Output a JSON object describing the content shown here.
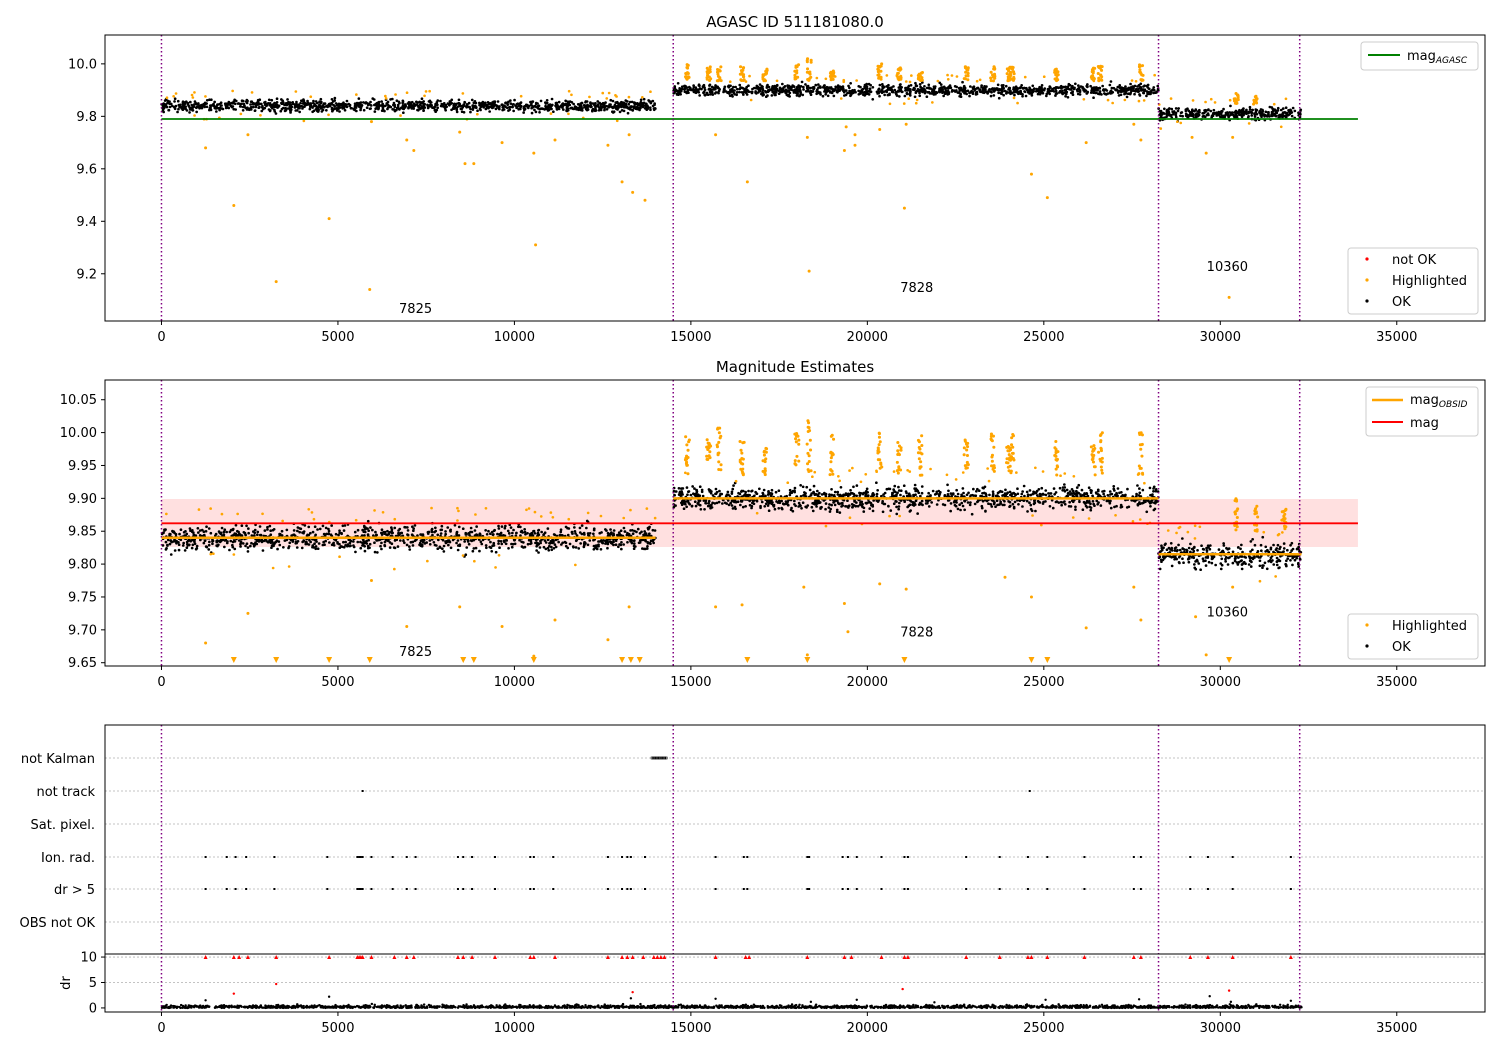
{
  "figure": {
    "background": "#ffffff"
  },
  "colors": {
    "ok": "#000000",
    "highlighted": "#ffa500",
    "not_ok": "#ff0000",
    "agasc": "#008000",
    "mag": "#ff0000",
    "obsid": "#ffa500",
    "band": "#ffcccc",
    "obs_boundary": "#800080",
    "grid": "#b0b0b0"
  },
  "chart_data": [
    {
      "id": "mag_agasc",
      "type": "scatter",
      "title": "AGASC ID 511181080.0",
      "xlim": [
        -1600,
        37500
      ],
      "ylim": [
        9.02,
        10.11
      ],
      "xticks": [
        0,
        5000,
        10000,
        15000,
        20000,
        25000,
        30000,
        35000
      ],
      "xtick_labels": [
        "0",
        "5000",
        "10000",
        "15000",
        "20000",
        "25000",
        "30000",
        "35000"
      ],
      "yticks": [
        9.2,
        9.4,
        9.6,
        9.8,
        10.0
      ],
      "ytick_labels": [
        "9.2",
        "9.4",
        "9.6",
        "9.8",
        "10.0"
      ],
      "obs_boundaries": [
        0,
        14500,
        28250,
        32250
      ],
      "observations": [
        {
          "obsid": "7825",
          "x_range": [
            0,
            14000
          ],
          "ok_mean": 9.84,
          "ok_spread": 0.02,
          "label_at": [
            7200,
            9.05
          ]
        },
        {
          "obsid": "7828",
          "x_range": [
            14500,
            28250
          ],
          "ok_mean": 9.9,
          "ok_spread": 0.02,
          "label_at": [
            21400,
            9.13
          ]
        },
        {
          "obsid": "10360",
          "x_range": [
            28250,
            32300
          ],
          "ok_mean": 9.81,
          "ok_spread": 0.02,
          "label_at": [
            30200,
            9.21
          ]
        }
      ],
      "highlighted_outliers": [
        [
          1250,
          9.68
        ],
        [
          2050,
          9.46
        ],
        [
          2450,
          9.73
        ],
        [
          3250,
          9.17
        ],
        [
          4750,
          9.41
        ],
        [
          5900,
          9.14
        ],
        [
          5950,
          9.78
        ],
        [
          6950,
          9.71
        ],
        [
          7150,
          9.67
        ],
        [
          8450,
          9.74
        ],
        [
          8600,
          9.62
        ],
        [
          8850,
          9.62
        ],
        [
          9650,
          9.7
        ],
        [
          10550,
          9.66
        ],
        [
          10600,
          9.31
        ],
        [
          11150,
          9.71
        ],
        [
          12650,
          9.69
        ],
        [
          13050,
          9.55
        ],
        [
          13250,
          9.73
        ],
        [
          13350,
          9.51
        ],
        [
          13700,
          9.48
        ],
        [
          15700,
          9.73
        ],
        [
          16600,
          9.55
        ],
        [
          18300,
          9.72
        ],
        [
          18350,
          9.21
        ],
        [
          19350,
          9.67
        ],
        [
          19400,
          9.76
        ],
        [
          19650,
          9.69
        ],
        [
          19650,
          9.73
        ],
        [
          20350,
          9.75
        ],
        [
          21100,
          9.77
        ],
        [
          21050,
          9.45
        ],
        [
          24650,
          9.58
        ],
        [
          25100,
          9.49
        ],
        [
          26200,
          9.7
        ],
        [
          27550,
          9.77
        ],
        [
          27750,
          9.71
        ],
        [
          29200,
          9.72
        ],
        [
          29600,
          9.66
        ],
        [
          30250,
          9.11
        ],
        [
          30350,
          9.72
        ]
      ],
      "highlighted_columns": [
        [
          14900,
          10.0
        ],
        [
          15500,
          9.99
        ],
        [
          15800,
          9.99
        ],
        [
          16450,
          9.99
        ],
        [
          17100,
          9.98
        ],
        [
          18000,
          10.0
        ],
        [
          18350,
          10.02
        ],
        [
          19000,
          9.98
        ],
        [
          20350,
          10.0
        ],
        [
          20900,
          9.99
        ],
        [
          21500,
          9.97
        ],
        [
          22800,
          9.99
        ],
        [
          23550,
          9.99
        ],
        [
          24000,
          9.99
        ],
        [
          24100,
          10.0
        ],
        [
          25350,
          9.98
        ],
        [
          26400,
          9.99
        ],
        [
          26600,
          10.0
        ],
        [
          27750,
          10.0
        ],
        [
          30450,
          9.89
        ],
        [
          31000,
          9.88
        ]
      ],
      "hlines": [
        {
          "name": "mag_AGASC",
          "y": 9.79,
          "x_range": [
            0,
            33900
          ]
        }
      ],
      "legend_upper": {
        "position": "upper right",
        "entries": [
          {
            "label": "mag",
            "subscript": "AGASC",
            "kind": "line"
          }
        ]
      },
      "legend_lower": {
        "position": "lower right",
        "entries": [
          {
            "label": "not OK",
            "kind": "dot-red"
          },
          {
            "label": "Highlighted",
            "kind": "dot-orange"
          },
          {
            "label": "OK",
            "kind": "dot-black"
          }
        ]
      }
    },
    {
      "id": "mag_estimates",
      "type": "scatter",
      "title": "Magnitude Estimates",
      "xlim": [
        -1600,
        37500
      ],
      "ylim": [
        9.645,
        10.08
      ],
      "xticks": [
        0,
        5000,
        10000,
        15000,
        20000,
        25000,
        30000,
        35000
      ],
      "xtick_labels": [
        "0",
        "5000",
        "10000",
        "15000",
        "20000",
        "25000",
        "30000",
        "35000"
      ],
      "yticks": [
        9.65,
        9.7,
        9.75,
        9.8,
        9.85,
        9.9,
        9.95,
        10.0,
        10.05
      ],
      "ytick_labels": [
        "9.65",
        "9.70",
        "9.75",
        "9.80",
        "9.85",
        "9.90",
        "9.95",
        "10.00",
        "10.05"
      ],
      "obs_boundaries": [
        0,
        14500,
        28250,
        32250
      ],
      "observations": [
        {
          "obsid": "7825",
          "x_range": [
            0,
            14000
          ],
          "ok_mean": 9.84,
          "ok_spread": 0.017,
          "mag_obsid": 9.84,
          "label_at": [
            7200,
            9.66
          ]
        },
        {
          "obsid": "7828",
          "x_range": [
            14500,
            28250
          ],
          "ok_mean": 9.9,
          "ok_spread": 0.016,
          "mag_obsid": 9.9,
          "label_at": [
            21400,
            9.69
          ]
        },
        {
          "obsid": "10360",
          "x_range": [
            28250,
            32300
          ],
          "ok_mean": 9.815,
          "ok_spread": 0.017,
          "mag_obsid": 9.815,
          "label_at": [
            30200,
            9.72
          ]
        }
      ],
      "mag_line": {
        "name": "mag",
        "y": 9.862,
        "x_range": [
          0,
          33900
        ]
      },
      "mag_band": {
        "y_range": [
          9.826,
          9.899
        ],
        "x_range": [
          0,
          33900
        ]
      },
      "down_arrows_x": [
        2050,
        3250,
        4750,
        5900,
        8550,
        8850,
        10550,
        13050,
        13300,
        13550,
        16600,
        18300,
        21050,
        24650,
        25100,
        30250
      ],
      "highlighted_outliers": [
        [
          1250,
          9.68
        ],
        [
          2450,
          9.725
        ],
        [
          5950,
          9.775
        ],
        [
          6950,
          9.705
        ],
        [
          8450,
          9.735
        ],
        [
          9650,
          9.705
        ],
        [
          10550,
          9.66
        ],
        [
          11150,
          9.715
        ],
        [
          12650,
          9.685
        ],
        [
          13250,
          9.735
        ],
        [
          15700,
          9.735
        ],
        [
          16450,
          9.738
        ],
        [
          18200,
          9.765
        ],
        [
          18300,
          9.662
        ],
        [
          19350,
          9.74
        ],
        [
          19450,
          9.697
        ],
        [
          20350,
          9.77
        ],
        [
          21100,
          9.762
        ],
        [
          23900,
          9.78
        ],
        [
          24650,
          9.75
        ],
        [
          26200,
          9.703
        ],
        [
          27550,
          9.765
        ],
        [
          27750,
          9.715
        ],
        [
          29300,
          9.72
        ],
        [
          29600,
          9.662
        ],
        [
          30350,
          9.765
        ]
      ],
      "highlighted_columns": [
        [
          14900,
          10.0
        ],
        [
          15500,
          9.99
        ],
        [
          15800,
          10.01
        ],
        [
          16450,
          9.99
        ],
        [
          17100,
          9.98
        ],
        [
          18000,
          10.0
        ],
        [
          18350,
          10.02
        ],
        [
          19000,
          10.0
        ],
        [
          20350,
          10.0
        ],
        [
          20900,
          9.99
        ],
        [
          21500,
          10.0
        ],
        [
          22800,
          9.99
        ],
        [
          23550,
          10.0
        ],
        [
          24000,
          9.99
        ],
        [
          24100,
          10.0
        ],
        [
          25350,
          9.99
        ],
        [
          26400,
          9.99
        ],
        [
          26600,
          10.0
        ],
        [
          27750,
          10.0
        ],
        [
          30450,
          9.9
        ],
        [
          31000,
          9.89
        ],
        [
          31800,
          9.89
        ]
      ],
      "legend_upper": {
        "position": "upper right",
        "entries": [
          {
            "label": "mag",
            "subscript": "OBSID",
            "kind": "line-orange"
          },
          {
            "label": "mag",
            "kind": "line-red"
          }
        ]
      },
      "legend_lower": {
        "position": "lower right",
        "entries": [
          {
            "label": "Highlighted",
            "kind": "dot-orange"
          },
          {
            "label": "OK",
            "kind": "dot-black"
          }
        ]
      }
    },
    {
      "id": "flags",
      "type": "scatter",
      "xlim": [
        -1600,
        37500
      ],
      "categories": [
        "not Kalman",
        "not track",
        "Sat. pixel.",
        "Ion. rad.",
        "dr > 5",
        "OBS not OK"
      ],
      "obs_boundaries": [
        0,
        14500,
        28250,
        32250
      ],
      "not_kalman_x_range": [
        13900,
        14300
      ],
      "not_track_x": [
        5700,
        24600
      ],
      "ion_rad_x": [
        1250,
        1850,
        2100,
        2400,
        3200,
        4700,
        5550,
        5600,
        5650,
        5700,
        5950,
        6550,
        6950,
        7200,
        8400,
        8550,
        8800,
        9450,
        10450,
        10550,
        11100,
        12650,
        13050,
        13200,
        13300,
        13700,
        15700,
        16500,
        16600,
        18300,
        18350,
        19300,
        19450,
        19700,
        20400,
        21050,
        21150,
        22800,
        23750,
        24550,
        25100,
        26150,
        27550,
        27750,
        29150,
        29650,
        30350,
        32000
      ]
    },
    {
      "id": "dr",
      "type": "scatter",
      "ylabel": "dr",
      "xlim": [
        -1600,
        37500
      ],
      "ylim": [
        -0.8,
        10.6
      ],
      "xticks": [
        0,
        5000,
        10000,
        15000,
        20000,
        25000,
        30000,
        35000
      ],
      "xtick_labels": [
        "0",
        "5000",
        "10000",
        "15000",
        "20000",
        "25000",
        "30000",
        "35000"
      ],
      "yticks": [
        0,
        5,
        10
      ],
      "ytick_labels": [
        "0",
        "5",
        "10"
      ],
      "obs_boundaries": [
        0,
        14500,
        28250,
        32250
      ],
      "clipped_at": 10,
      "clipped_x": [
        1250,
        2050,
        2200,
        2450,
        3250,
        4750,
        5550,
        5600,
        5650,
        5700,
        5950,
        6600,
        6950,
        7150,
        8400,
        8550,
        8800,
        9450,
        10450,
        10550,
        11150,
        12650,
        13050,
        13200,
        13350,
        13650,
        13950,
        14050,
        14150,
        14250,
        15700,
        16550,
        16650,
        18300,
        19350,
        19550,
        20400,
        21050,
        21150,
        22800,
        23750,
        24550,
        24650,
        25100,
        26150,
        27550,
        27750,
        29150,
        29650,
        30350,
        32000
      ],
      "red_points": [
        [
          2050,
          2.8
        ],
        [
          3250,
          4.7
        ],
        [
          13350,
          3.1
        ],
        [
          21000,
          3.7
        ],
        [
          30250,
          3.4
        ]
      ],
      "black_outliers": [
        [
          1250,
          1.5
        ],
        [
          4750,
          2.2
        ],
        [
          13300,
          1.9
        ],
        [
          15700,
          1.8
        ],
        [
          18400,
          1.2
        ],
        [
          19700,
          1.6
        ],
        [
          21900,
          1.1
        ],
        [
          25050,
          1.6
        ],
        [
          27700,
          1.7
        ],
        [
          29700,
          2.3
        ],
        [
          30300,
          1.2
        ],
        [
          32000,
          1.4
        ]
      ]
    }
  ]
}
